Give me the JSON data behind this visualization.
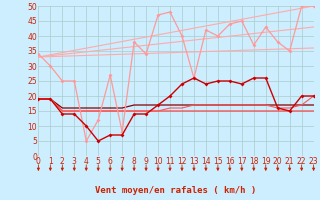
{
  "bg_color": "#cceeff",
  "grid_color": "#aacccc",
  "xmin": 0,
  "xmax": 23,
  "ymin": 0,
  "ymax": 50,
  "yticks": [
    0,
    5,
    10,
    15,
    20,
    25,
    30,
    35,
    40,
    45,
    50
  ],
  "xticks": [
    0,
    1,
    2,
    3,
    4,
    5,
    6,
    7,
    8,
    9,
    10,
    11,
    12,
    13,
    14,
    15,
    16,
    17,
    18,
    19,
    20,
    21,
    22,
    23
  ],
  "xlabel": "Vent moyen/en rafales ( km/h )",
  "xlabel_color": "#cc2200",
  "xlabel_fontsize": 6.5,
  "tick_color": "#cc2200",
  "tick_fontsize": 5.5,
  "arrow_color": "#cc2200",
  "trend_lines": [
    {
      "x0": 0,
      "y0": 33,
      "x1": 23,
      "y1": 36
    },
    {
      "x0": 0,
      "y0": 33,
      "x1": 23,
      "y1": 43
    },
    {
      "x0": 0,
      "y0": 33,
      "x1": 23,
      "y1": 50
    }
  ],
  "trend_color": "#ffaaaa",
  "trend_lw": 0.8,
  "series": [
    {
      "x": [
        0,
        1,
        2,
        3,
        4,
        5,
        6,
        7,
        8,
        9,
        10,
        11,
        12,
        13,
        14,
        15,
        16,
        17,
        18,
        19,
        20,
        21,
        22,
        23
      ],
      "y": [
        34,
        30,
        25,
        25,
        5,
        12,
        27,
        8,
        38,
        34,
        47,
        48,
        40,
        26,
        42,
        40,
        44,
        45,
        37,
        43,
        38,
        35,
        50,
        50
      ],
      "color": "#ff9999",
      "marker": "D",
      "lw": 0.9,
      "ms": 2.0,
      "zorder": 5
    },
    {
      "x": [
        0,
        1,
        2,
        3,
        4,
        5,
        6,
        7,
        8,
        9,
        10,
        11,
        12,
        13,
        14,
        15,
        16,
        17,
        18,
        19,
        20,
        21,
        22,
        23
      ],
      "y": [
        19,
        19,
        14,
        14,
        10,
        5,
        7,
        7,
        14,
        14,
        17,
        20,
        24,
        26,
        24,
        25,
        25,
        24,
        26,
        26,
        16,
        15,
        20,
        20
      ],
      "color": "#cc0000",
      "marker": "D",
      "lw": 1.0,
      "ms": 2.0,
      "zorder": 6
    },
    {
      "x": [
        0,
        1,
        2,
        3,
        4,
        5,
        6,
        7,
        8,
        9,
        10,
        11,
        12,
        13,
        14,
        15,
        16,
        17,
        18,
        19,
        20,
        21,
        22,
        23
      ],
      "y": [
        19,
        19,
        16,
        16,
        16,
        16,
        16,
        16,
        17,
        17,
        17,
        17,
        17,
        17,
        17,
        17,
        17,
        17,
        17,
        17,
        17,
        17,
        17,
        17
      ],
      "color": "#880000",
      "marker": null,
      "lw": 0.9,
      "ms": 0,
      "zorder": 4
    },
    {
      "x": [
        0,
        1,
        2,
        3,
        4,
        5,
        6,
        7,
        8,
        9,
        10,
        11,
        12,
        13,
        14,
        15,
        16,
        17,
        18,
        19,
        20,
        21,
        22,
        23
      ],
      "y": [
        19,
        19,
        15,
        15,
        15,
        15,
        15,
        15,
        15,
        15,
        15,
        15,
        15,
        15,
        15,
        15,
        15,
        15,
        15,
        15,
        15,
        15,
        15,
        15
      ],
      "color": "#ff3333",
      "marker": null,
      "lw": 0.8,
      "ms": 0,
      "zorder": 4
    },
    {
      "x": [
        0,
        1,
        2,
        3,
        4,
        5,
        6,
        7,
        8,
        9,
        10,
        11,
        12,
        13,
        14,
        15,
        16,
        17,
        18,
        19,
        20,
        21,
        22,
        23
      ],
      "y": [
        19,
        19,
        15,
        15,
        15,
        15,
        15,
        15,
        15,
        15,
        15,
        16,
        16,
        17,
        17,
        17,
        17,
        17,
        17,
        17,
        16,
        16,
        17,
        20
      ],
      "color": "#ff5555",
      "marker": null,
      "lw": 0.8,
      "ms": 0,
      "zorder": 4
    }
  ]
}
